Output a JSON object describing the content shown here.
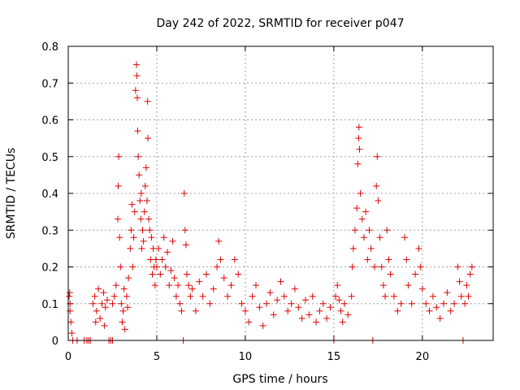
{
  "chart_data": {
    "type": "scatter",
    "title": "Day 242 of 2022, SRMTID for receiver p047",
    "xlabel": "GPS time / hours",
    "ylabel": "SRMTID / TECUs",
    "xlim": [
      0,
      24
    ],
    "ylim": [
      0,
      0.8
    ],
    "x_ticks": [
      0,
      5,
      10,
      15,
      20
    ],
    "y_ticks": [
      0,
      0.1,
      0.2,
      0.3,
      0.4,
      0.5,
      0.6,
      0.7,
      0.8
    ],
    "x_tick_labels": [
      "0",
      "5",
      "10",
      "15",
      "20"
    ],
    "y_tick_labels": [
      "0",
      "0.1",
      "0.2",
      "0.3",
      "0.4",
      "0.5",
      "0.6",
      "0.7",
      "0.8"
    ],
    "grid": true,
    "marker": "plus",
    "color": "#e00000",
    "data_coverage_hours": [
      0,
      22.8
    ],
    "series": [
      {
        "name": "SRMTID",
        "points": [
          [
            0.05,
            0.12
          ],
          [
            0.1,
            0.08
          ],
          [
            0.15,
            0.05
          ],
          [
            0.2,
            0.02
          ],
          [
            0.1,
            0.1
          ],
          [
            0.08,
            0.13
          ],
          [
            0.25,
            0.0
          ],
          [
            0.5,
            0.0
          ],
          [
            0.9,
            0.0
          ],
          [
            1.05,
            0.0
          ],
          [
            1.15,
            0.0
          ],
          [
            1.25,
            0.0
          ],
          [
            1.4,
            0.1
          ],
          [
            1.5,
            0.12
          ],
          [
            1.6,
            0.08
          ],
          [
            1.7,
            0.14
          ],
          [
            1.8,
            0.06
          ],
          [
            1.9,
            0.1
          ],
          [
            2.0,
            0.13
          ],
          [
            2.1,
            0.09
          ],
          [
            2.2,
            0.11
          ],
          [
            2.05,
            0.04
          ],
          [
            1.55,
            0.05
          ],
          [
            2.3,
            0.0
          ],
          [
            2.4,
            0.0
          ],
          [
            2.5,
            0.0
          ],
          [
            2.5,
            0.1
          ],
          [
            2.6,
            0.12
          ],
          [
            2.7,
            0.15
          ],
          [
            2.8,
            0.33
          ],
          [
            2.82,
            0.42
          ],
          [
            2.85,
            0.5
          ],
          [
            2.9,
            0.28
          ],
          [
            2.95,
            0.2
          ],
          [
            3.0,
            0.1
          ],
          [
            3.05,
            0.05
          ],
          [
            3.1,
            0.08
          ],
          [
            3.2,
            0.03
          ],
          [
            3.15,
            0.14
          ],
          [
            3.3,
            0.12
          ],
          [
            3.35,
            0.09
          ],
          [
            3.4,
            0.17
          ],
          [
            3.5,
            0.25
          ],
          [
            3.55,
            0.3
          ],
          [
            3.6,
            0.37
          ],
          [
            3.65,
            0.2
          ],
          [
            3.7,
            0.28
          ],
          [
            3.75,
            0.35
          ],
          [
            3.8,
            0.68
          ],
          [
            3.85,
            0.75
          ],
          [
            3.88,
            0.72
          ],
          [
            3.9,
            0.66
          ],
          [
            3.92,
            0.57
          ],
          [
            3.95,
            0.5
          ],
          [
            4.0,
            0.45
          ],
          [
            4.05,
            0.38
          ],
          [
            4.1,
            0.33
          ],
          [
            4.12,
            0.4
          ],
          [
            4.15,
            0.25
          ],
          [
            4.2,
            0.3
          ],
          [
            4.25,
            0.27
          ],
          [
            4.3,
            0.35
          ],
          [
            4.35,
            0.42
          ],
          [
            4.4,
            0.47
          ],
          [
            4.45,
            0.38
          ],
          [
            4.48,
            0.65
          ],
          [
            4.5,
            0.55
          ],
          [
            4.55,
            0.33
          ],
          [
            4.6,
            0.3
          ],
          [
            4.65,
            0.22
          ],
          [
            4.7,
            0.28
          ],
          [
            4.75,
            0.18
          ],
          [
            4.8,
            0.25
          ],
          [
            4.85,
            0.2
          ],
          [
            4.9,
            0.15
          ],
          [
            4.95,
            0.22
          ],
          [
            5.0,
            0.2
          ],
          [
            5.1,
            0.25
          ],
          [
            5.2,
            0.18
          ],
          [
            5.3,
            0.22
          ],
          [
            5.4,
            0.28
          ],
          [
            5.5,
            0.2
          ],
          [
            5.6,
            0.24
          ],
          [
            5.7,
            0.15
          ],
          [
            5.8,
            0.19
          ],
          [
            5.9,
            0.27
          ],
          [
            6.0,
            0.17
          ],
          [
            6.1,
            0.12
          ],
          [
            6.2,
            0.15
          ],
          [
            6.3,
            0.1
          ],
          [
            6.4,
            0.08
          ],
          [
            6.5,
            0.0
          ],
          [
            6.55,
            0.4
          ],
          [
            6.6,
            0.3
          ],
          [
            6.65,
            0.26
          ],
          [
            6.7,
            0.18
          ],
          [
            6.8,
            0.15
          ],
          [
            6.9,
            0.12
          ],
          [
            7.0,
            0.14
          ],
          [
            7.2,
            0.08
          ],
          [
            7.4,
            0.16
          ],
          [
            7.6,
            0.12
          ],
          [
            7.8,
            0.18
          ],
          [
            8.0,
            0.1
          ],
          [
            8.2,
            0.14
          ],
          [
            8.4,
            0.2
          ],
          [
            8.5,
            0.27
          ],
          [
            8.6,
            0.22
          ],
          [
            8.8,
            0.17
          ],
          [
            9.0,
            0.12
          ],
          [
            9.2,
            0.15
          ],
          [
            9.4,
            0.22
          ],
          [
            9.6,
            0.18
          ],
          [
            9.8,
            0.1
          ],
          [
            10.0,
            0.08
          ],
          [
            10.2,
            0.05
          ],
          [
            10.4,
            0.12
          ],
          [
            10.6,
            0.15
          ],
          [
            10.8,
            0.09
          ],
          [
            11.0,
            0.04
          ],
          [
            11.2,
            0.1
          ],
          [
            11.4,
            0.13
          ],
          [
            11.6,
            0.07
          ],
          [
            11.8,
            0.11
          ],
          [
            12.0,
            0.16
          ],
          [
            12.2,
            0.12
          ],
          [
            12.4,
            0.08
          ],
          [
            12.6,
            0.1
          ],
          [
            12.8,
            0.14
          ],
          [
            13.0,
            0.09
          ],
          [
            13.2,
            0.06
          ],
          [
            13.4,
            0.11
          ],
          [
            13.6,
            0.07
          ],
          [
            13.8,
            0.12
          ],
          [
            14.0,
            0.05
          ],
          [
            14.2,
            0.08
          ],
          [
            14.4,
            0.1
          ],
          [
            14.6,
            0.06
          ],
          [
            14.8,
            0.09
          ],
          [
            15.0,
            0.0
          ],
          [
            15.1,
            0.12
          ],
          [
            15.2,
            0.15
          ],
          [
            15.3,
            0.11
          ],
          [
            15.4,
            0.08
          ],
          [
            15.5,
            0.05
          ],
          [
            15.6,
            0.1
          ],
          [
            15.8,
            0.07
          ],
          [
            16.0,
            0.12
          ],
          [
            16.05,
            0.2
          ],
          [
            16.1,
            0.25
          ],
          [
            16.2,
            0.3
          ],
          [
            16.3,
            0.36
          ],
          [
            16.35,
            0.48
          ],
          [
            16.4,
            0.55
          ],
          [
            16.42,
            0.58
          ],
          [
            16.45,
            0.52
          ],
          [
            16.5,
            0.4
          ],
          [
            16.6,
            0.33
          ],
          [
            16.7,
            0.28
          ],
          [
            16.8,
            0.35
          ],
          [
            16.9,
            0.22
          ],
          [
            17.0,
            0.3
          ],
          [
            17.1,
            0.25
          ],
          [
            17.2,
            0.0
          ],
          [
            17.3,
            0.2
          ],
          [
            17.4,
            0.42
          ],
          [
            17.45,
            0.5
          ],
          [
            17.5,
            0.38
          ],
          [
            17.6,
            0.28
          ],
          [
            17.7,
            0.2
          ],
          [
            17.8,
            0.15
          ],
          [
            17.9,
            0.12
          ],
          [
            18.0,
            0.3
          ],
          [
            18.1,
            0.22
          ],
          [
            18.2,
            0.18
          ],
          [
            18.4,
            0.12
          ],
          [
            18.6,
            0.08
          ],
          [
            18.8,
            0.1
          ],
          [
            19.0,
            0.28
          ],
          [
            19.1,
            0.22
          ],
          [
            19.2,
            0.15
          ],
          [
            19.4,
            0.1
          ],
          [
            19.6,
            0.18
          ],
          [
            19.8,
            0.25
          ],
          [
            19.9,
            0.2
          ],
          [
            20.0,
            0.14
          ],
          [
            20.2,
            0.1
          ],
          [
            20.4,
            0.08
          ],
          [
            20.6,
            0.12
          ],
          [
            20.8,
            0.09
          ],
          [
            21.0,
            0.06
          ],
          [
            21.2,
            0.1
          ],
          [
            21.4,
            0.13
          ],
          [
            21.6,
            0.08
          ],
          [
            21.8,
            0.1
          ],
          [
            22.0,
            0.2
          ],
          [
            22.1,
            0.16
          ],
          [
            22.2,
            0.12
          ],
          [
            22.3,
            0.0
          ],
          [
            22.4,
            0.1
          ],
          [
            22.5,
            0.15
          ],
          [
            22.6,
            0.12
          ],
          [
            22.7,
            0.18
          ],
          [
            22.8,
            0.2
          ]
        ]
      }
    ]
  }
}
